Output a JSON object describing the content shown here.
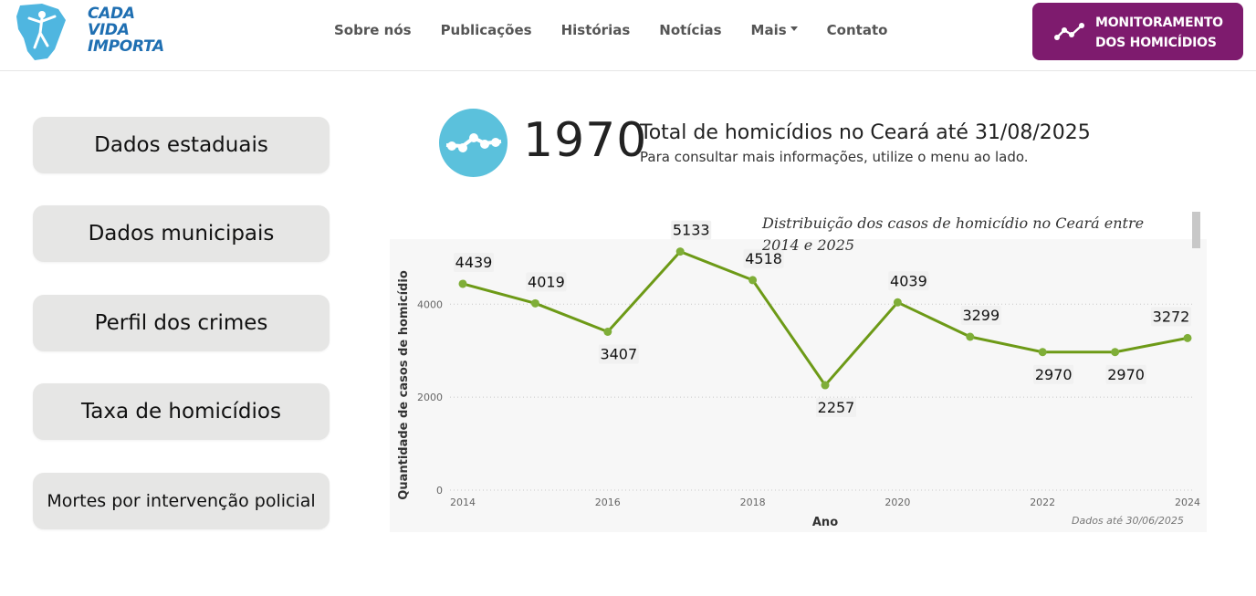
{
  "header": {
    "logo": {
      "line1": "CADA",
      "line2": "VIDA",
      "line3": "IMPORTA",
      "icon": "ceara-map-figure-icon"
    },
    "nav": [
      {
        "label": "Sobre nós"
      },
      {
        "label": "Publicações"
      },
      {
        "label": "Histórias"
      },
      {
        "label": "Notícias"
      },
      {
        "label": "Mais",
        "has_dropdown": true
      },
      {
        "label": "Contato"
      }
    ],
    "cta": {
      "line1": "MONITORAMENTO",
      "line2": "DOS HOMICÍDIOS",
      "icon": "line-chart-icon",
      "color": "#7e1b6e"
    }
  },
  "sidebar": {
    "items": [
      {
        "label": "Dados estaduais"
      },
      {
        "label": "Dados municipais"
      },
      {
        "label": "Perfil dos crimes"
      },
      {
        "label": "Taxa de homicídios"
      },
      {
        "label": "Mortes por intervenção policial"
      }
    ]
  },
  "kpi": {
    "value": "1970",
    "title": "Total de homicídios no Ceará até 31/08/2025",
    "subtitle": "Para consultar mais informações, utilize o menu ao lado.",
    "icon": "trend-line-icon",
    "icon_color": "#5bc1dc"
  },
  "chart_data": {
    "type": "line",
    "title": "Distribuição dos casos de homicídio no Ceará entre 2014 e 2025",
    "xlabel": "Ano",
    "ylabel": "Quantidade de casos de homicídio",
    "x": [
      2014,
      2015,
      2016,
      2017,
      2018,
      2019,
      2020,
      2021,
      2022,
      2023,
      2024
    ],
    "values": [
      4439,
      4019,
      3407,
      5133,
      4518,
      2257,
      4039,
      3299,
      2970,
      2970,
      3272
    ],
    "x_ticks": [
      "2014",
      "2016",
      "2018",
      "2020",
      "2022",
      "2024"
    ],
    "y_ticks": [
      "0",
      "2000",
      "4000"
    ],
    "ylim": [
      0,
      5400
    ],
    "xlim": [
      2014,
      2024
    ],
    "grid": true,
    "line_color": "#6d9a17",
    "marker_color": "#7fae38",
    "footnote": "Dados até 30/06/2025"
  }
}
